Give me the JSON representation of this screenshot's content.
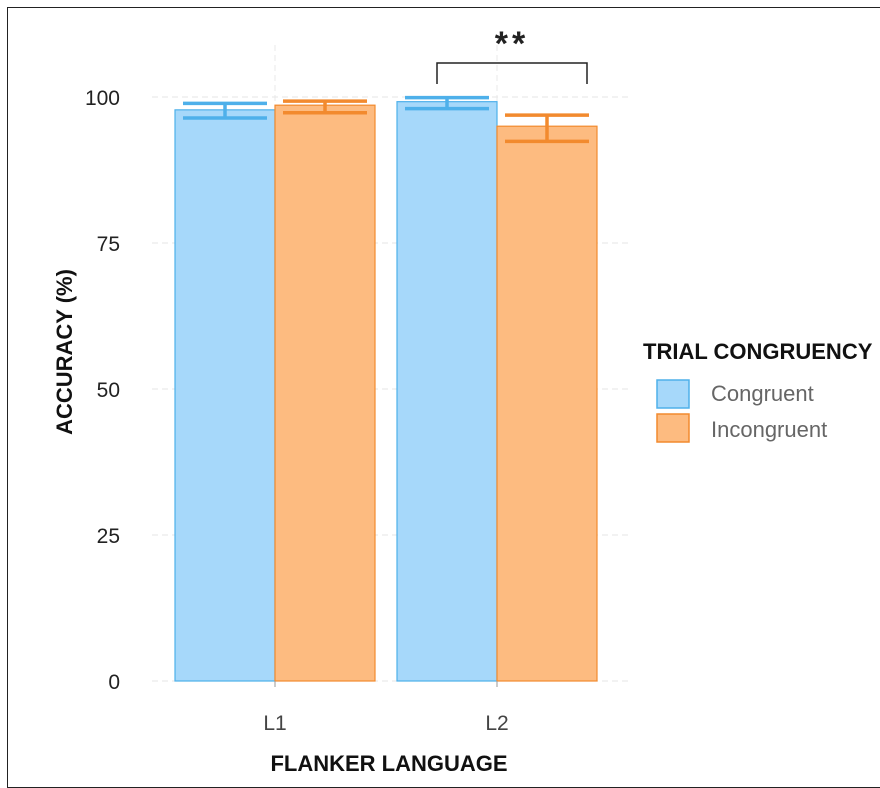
{
  "chart_data": {
    "type": "bar",
    "categories": [
      "L1",
      "L2"
    ],
    "series": [
      {
        "name": "Congruent",
        "values": [
          97.8,
          99.2
        ],
        "error_low": [
          96.4,
          98.0
        ],
        "error_high": [
          98.9,
          99.9
        ]
      },
      {
        "name": "Incongruent",
        "values": [
          98.6,
          95.0
        ],
        "error_low": [
          97.3,
          92.4
        ],
        "error_high": [
          99.3,
          96.9
        ]
      }
    ],
    "title": "",
    "xlabel": "FLANKER LANGUAGE",
    "ylabel": "ACCURACY (%)",
    "ylim": [
      0,
      100
    ],
    "yticks": [
      "0",
      "25",
      "50",
      "75",
      "100"
    ],
    "legend": {
      "title": "TRIAL CONGRUENCY",
      "placement": "right"
    },
    "grid": true,
    "annotation": {
      "text": "**",
      "category": "L2"
    },
    "colors": {
      "Congruent": {
        "fill": "#a6d8fa",
        "stroke": "#4eb0ea"
      },
      "Incongruent": {
        "fill": "#fdbb80",
        "stroke": "#f28a2e"
      }
    }
  }
}
